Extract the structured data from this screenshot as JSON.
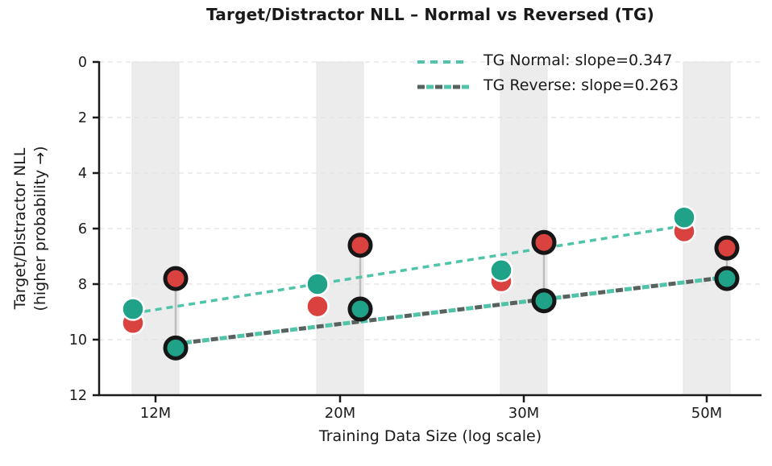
{
  "chart_data": {
    "type": "scatter",
    "title": "Target/Distractor NLL – Normal vs Reversed (TG)",
    "xlabel": "Training Data Size (log scale)",
    "ylabel_lines": [
      "Target/Distractor NLL",
      "(higher probability →)"
    ],
    "x_scale": "log",
    "x_tick_labels": [
      "12M",
      "20M",
      "30M",
      "50M"
    ],
    "y_ticks": [
      0,
      2,
      4,
      6,
      8,
      10,
      12
    ],
    "ylim": [
      0,
      12
    ],
    "y_axis_inverted": true,
    "grid": "horizontal dashed",
    "vertical_bands_at_ticks": true,
    "legend_position": "upper right",
    "series": [
      {
        "id": "normal_target",
        "group": "normal",
        "marker_edge": "white",
        "color": "#1fa287",
        "values": [
          8.9,
          8.0,
          7.5,
          5.6
        ]
      },
      {
        "id": "normal_distractor",
        "group": "normal",
        "marker_edge": "white",
        "color": "#d9423e",
        "values": [
          9.4,
          8.8,
          7.9,
          6.1
        ]
      },
      {
        "id": "reverse_distractor",
        "group": "reverse",
        "marker_edge": "black",
        "color": "#d9423e",
        "values": [
          7.8,
          6.6,
          6.5,
          6.7
        ]
      },
      {
        "id": "reverse_target",
        "group": "reverse",
        "marker_edge": "black",
        "color": "#1fa287",
        "values": [
          10.3,
          8.9,
          8.6,
          7.8
        ]
      }
    ],
    "connector_between": [
      "reverse_distractor",
      "reverse_target"
    ],
    "trend_lines": [
      {
        "id": "normal",
        "label": "TG Normal: slope=0.347",
        "slope": 0.347,
        "style": "dashed",
        "color": "#4fc4a8",
        "y_at_first_x": 9.05,
        "y_at_last_x": 5.9
      },
      {
        "id": "reverse",
        "label": "TG Reverse: slope=0.263",
        "slope": 0.263,
        "style": "dashed-two-tone",
        "color": "#57615d",
        "color2": "#4fc4a8",
        "y_at_first_x": 10.15,
        "y_at_last_x": 7.75
      }
    ],
    "colors": {
      "teal": "#1fa287",
      "red": "#d9423e",
      "band": "#ececec",
      "band_edge": "#e4e4e4",
      "grid": "#e2e2e2",
      "connector": "#bdbdbd",
      "marker_edge_dark": "#161616",
      "marker_edge_white": "#ffffff",
      "text": "#1a1a1a"
    }
  }
}
